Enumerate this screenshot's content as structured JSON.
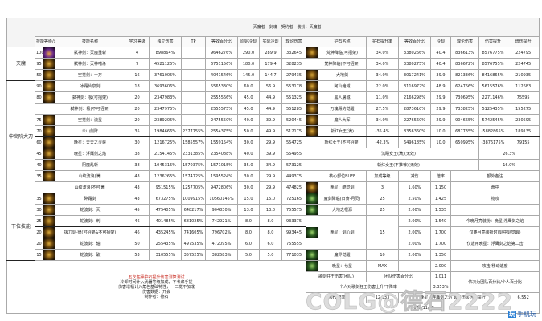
{
  "header": {
    "title": "灭魔者　剑魂　契约者　装扮：灭魔者"
  },
  "columns": {
    "level": "技能等级/消耗",
    "name": "技能名称",
    "req": "学习等级",
    "indep": "独立伤害",
    "tp": "TP",
    "equiv": "等效百分比",
    "cd": "原始冷却",
    "cd2": "实际冷却",
    "theory": "理论伤害",
    "rname": "护石名称",
    "rate": "护石提升率",
    "requiv": "等效百分比",
    "rcd": "冷却",
    "rdmg": "理论伤害",
    "rboost": "伤害提升",
    "rboost2": "增伤提升"
  },
  "sections": [
    {
      "name": "灭魔",
      "rows": [
        {
          "lv": "100",
          "name": "弑神剑：灭魔重斩",
          "req": "4",
          "indep": "898864%",
          "tp": "",
          "equiv": "9646276%",
          "cd": "290.0",
          "cd2": "289.9",
          "theory": "332645",
          "icon": "purple",
          "r": {
            "icon": "gold",
            "name": "梵神降临(可招架)",
            "rate": "34.0%",
            "equiv": "3380266%",
            "cd": "40.4",
            "dmg": "836613%",
            "boost": "8576775%",
            "boost2": "224795"
          }
        },
        {
          "lv": "95",
          "name": "弑神剑：灭神嗜杀",
          "req": "7",
          "indep": "4521125%",
          "tp": "",
          "equiv": "6751156%",
          "cd": "180.0",
          "cd2": "179.4",
          "theory": "328235",
          "icon": "gold",
          "r": {
            "icon": "",
            "name": "梵神降临(不可招架)",
            "rate": "34.0%",
            "equiv": "3380275%",
            "cd": "40.4",
            "dmg": "836672%",
            "boost": "8576755%",
            "boost2": "224745"
          }
        },
        {
          "lv": "50",
          "name": "空觉剑：十万",
          "req": "16",
          "indep": "3761005%",
          "tp": "",
          "equiv": "4041546%",
          "cd": "145.0",
          "cd2": "144.7",
          "theory": "279435",
          "icon": "gold",
          "r": {
            "icon": "gold",
            "name": "大地剑",
            "rate": "34.0%",
            "equiv": "3017241%",
            "cd": "39.9",
            "dmg": "821336%",
            "boost": "8416865%",
            "boost2": "210935"
          }
        }
      ]
    },
    {
      "name": "中高阶大刀",
      "rows": [
        {
          "lv": "90",
          "name": "冰霜仙泉剑",
          "req": "18",
          "indep": "3693606%",
          "tp": "",
          "equiv": "5565330%",
          "cd": "60.0",
          "cd2": "56.9",
          "theory": "553178",
          "icon": "gold",
          "r": {
            "icon": "gold",
            "name": "阿山绝域",
            "rate": "22.0%",
            "equiv": "3116972%",
            "cd": "48.9",
            "dmg": "624766%",
            "boost": "5615576%",
            "boost2": "112683"
          }
        },
        {
          "lv": "80",
          "name": "弑神剑：极(可招架)",
          "req": "20",
          "indep": "2347983%",
          "tp": "",
          "equiv": "2555566%",
          "cd": "45.0",
          "cd2": "44.9",
          "theory": "551325",
          "icon": "gold",
          "r": {
            "icon": "gold",
            "name": "黑人屠城",
            "rate": "11.0%",
            "equiv": "2166298%",
            "cd": "29.9",
            "dmg": "730695%",
            "boost": "2271146%",
            "boost2": "75595"
          }
        },
        {
          "lv": "",
          "name": "弑神剑：极(不可招架)",
          "req": "20",
          "indep": "2347975%",
          "tp": "",
          "equiv": "2555575%",
          "cd": "45.0",
          "cd2": "44.9",
          "theory": "551285",
          "icon": "",
          "r": {
            "icon": "gold",
            "name": "万魂殿的觉醒",
            "rate": "27.5%",
            "equiv": "2873610%",
            "cd": "29.9",
            "dmg": "733825%",
            "boost": "5125435%",
            "boost2": "155275"
          }
        },
        {
          "lv": "75",
          "name": "空觉剑：流星",
          "req": "20",
          "indep": "2389205%",
          "tp": "",
          "equiv": "2475550%",
          "cd": "40.0",
          "cd2": "39.9",
          "theory": "520445",
          "icon": "gold",
          "r": {
            "icon": "gold",
            "name": "魔人大军",
            "rate": "34.0%",
            "equiv": "2276560%",
            "cd": "29.9",
            "dmg": "904665%",
            "boost": "5742545%",
            "boost2": "230595"
          }
        },
        {
          "lv": "70",
          "name": "炎山剑阵",
          "req": "35",
          "indep": "1984666%",
          "tp": "2377755%",
          "equiv": "2554375%",
          "cd": "50.0",
          "cd2": "49.9",
          "theory": "512175",
          "icon": "gold",
          "thick": true,
          "r": {
            "icon": "gold",
            "name": "斩红女王(满)",
            "rate": "-35.4%",
            "equiv": "8356360%",
            "cd": "10.0",
            "dmg": "687735%",
            "boost": "-5882865%",
            "boost2": "189135"
          }
        },
        {
          "lv": "60",
          "name": "晚星：天天之灵装",
          "req": "30",
          "indep": "1216725%",
          "tp": "1585557%",
          "equiv": "1559154%",
          "cd": "30.0",
          "cd2": "29.9",
          "theory": "554725",
          "icon": "gold",
          "r": {
            "icon": "",
            "name": "斩红女王(不可招架)",
            "rate": "-42.3%",
            "equiv": "6496185%",
            "cd": "10.0",
            "dmg": "650995%",
            "boost": "-3876175%",
            "boost2": "79155"
          }
        },
        {
          "lv": "45",
          "name": "晚星：浮鹰剑之焰",
          "req": "38",
          "indep": "2154145%",
          "tp": "2331385%",
          "equiv": "2354088%",
          "cd": "40.0",
          "cd2": "39.9",
          "theory": "554955",
          "icon": "gold",
          "merged": {
            "label": "沉睡女王(满)(无效)",
            "value": "26.3%"
          }
        },
        {
          "lv": "40",
          "name": "阴魔乱斩",
          "req": "38",
          "indep": "1045315%",
          "tp": "1570375%",
          "equiv": "1571015%",
          "cd": "35.0",
          "cd2": "34.9",
          "theory": "573125",
          "icon": "gold",
          "merged": {
            "label": "斩红女王(不推荐)(无效)",
            "value": "16.0%"
          }
        },
        {
          "lv": "35",
          "name": "山纹波浪(满)",
          "req": "43",
          "indep": "1236265%",
          "tp": "1574725%",
          "equiv": "1595524%",
          "cd": "30.0",
          "cd2": "29.9",
          "theory": "449375",
          "icon": "gold",
          "buffhead": true
        },
        {
          "lv": "",
          "name": "山纹波浪(不可满)",
          "req": "43",
          "indep": "951515%",
          "tp": "1257705%",
          "equiv": "9472806%",
          "cd": "30.0",
          "cd2": "29.9",
          "theory": "474825",
          "icon": "",
          "thick": true,
          "buff": {
            "icon": "gold",
            "name": "晚星：酷觉剑",
            "level": "3",
            "reduce": "1.60%",
            "mult": "1.150",
            "note": "命中"
          }
        }
      ]
    },
    {
      "name": "下位技能",
      "rows": [
        {
          "lv": "35",
          "name": "碎霜剑",
          "req": "43",
          "indep": "673275%",
          "tp": "1009915%",
          "equiv": "10560145%",
          "cd": "15.0",
          "cd2": "15.0",
          "theory": "725165",
          "icon": "gold",
          "buff": {
            "icon": "green",
            "name": "魔剑降临(日食-月灵)",
            "level": "25",
            "reduce": "2.50%",
            "mult": "1.425",
            "note": "物攻"
          }
        },
        {
          "lv": "30",
          "name": "蛇波剑：灭",
          "req": "45",
          "indep": "475405%",
          "tp": "648217%",
          "equiv": "904830%",
          "cd": "13.0",
          "cd2": "13.0",
          "theory": "755575",
          "icon": "gold",
          "buff": {
            "icon": "green",
            "name": "大地之根源",
            "level": "25",
            "reduce": "2.00%",
            "mult": "1.535",
            "note": ""
          }
        },
        {
          "lv": "25",
          "name": "蛇波剑：刺",
          "req": "46",
          "indep": "401485%",
          "tp": "681025%",
          "equiv": "742921%",
          "cd": "8.0",
          "cd2": "8.0",
          "theory": "933375",
          "icon": "gold",
          "thick": true,
          "buff": {
            "icon": "green",
            "name": "晚星：剑心剑",
            "level": "15",
            "reduce": "2.00%",
            "mult": "1.540",
            "note": "今晚月亮装扮：晚星·浮鹰剑之焰",
            "span": 3
          }
        },
        {
          "lv": "20",
          "name": "拔刀剑·律(可招架&不可招架)",
          "req": "46",
          "indep": "435245%",
          "tp": "741605%",
          "equiv": "796702%",
          "cd": "8.0",
          "cd2": "8.0",
          "theory": "993445",
          "icon": "gold",
          "buff": {
            "cont": true,
            "reduce": "2.00%",
            "mult": "1.700",
            "note": "仅奥月亮装扮时(剑中剑觉醒)"
          }
        },
        {
          "lv": "20",
          "name": "蛇波剑：轴",
          "req": "50",
          "indep": "255435%",
          "tp": "497535%",
          "equiv": "472095%",
          "cd": "6.0",
          "cd2": "6.0",
          "theory": "755555",
          "icon": "gold",
          "buff": {
            "cont": true,
            "reduce": "2.00%",
            "mult": "1.700",
            "note": "仅适用晚星：浮鹰剑之焰第二击"
          }
        },
        {
          "lv": "15",
          "name": "蛇波剑：破",
          "req": "53",
          "indep": "310555%",
          "tp": "357525%",
          "equiv": "382583%",
          "cd": "5.0",
          "cd2": "5.0",
          "theory": "771035",
          "icon": "gold",
          "buff": {
            "icon": "green",
            "name": "魔界觉醒",
            "level": "10",
            "reduce": "2.00%",
            "mult": "1.350",
            "note": ""
          }
        }
      ]
    }
  ],
  "notes": {
    "line1": "五次狂躁护石提升伤害测算测试",
    "line2": "冷却时间计入武器等级加成，不考虑手搓",
    "line3": "伤害增幅计入角色基础特性，一二觉不加成",
    "line4": "伤害数据：开会",
    "line5": "制作者：德石"
  },
  "footer": {
    "buff7": {
      "name": "晚星：七星",
      "level": "MAX",
      "mult": "2.000",
      "note": "攻击/移动速度"
    },
    "team_label": "歌剑狂王伤害(团队)",
    "team_mid": "团队伤害百分比",
    "team_val": "1.011",
    "team_note": "依次为团队百分比/个人百分比",
    "personal_label": "个人对歌剑狂王伤害上升/下降率",
    "personal_val": "3.353%",
    "buff_rate_label": "BUFF倍率",
    "buff_rate_val": "12.533",
    "buff_mid": "晚星：浮鹰剑之焰 最终伤害倍率提升",
    "buff_mid_val": "6.552",
    "date": "2023/11/15"
  },
  "watermark": {
    "text": "COLG@德石2222",
    "logo_mark": "玩",
    "logo_text": "手机玩"
  }
}
